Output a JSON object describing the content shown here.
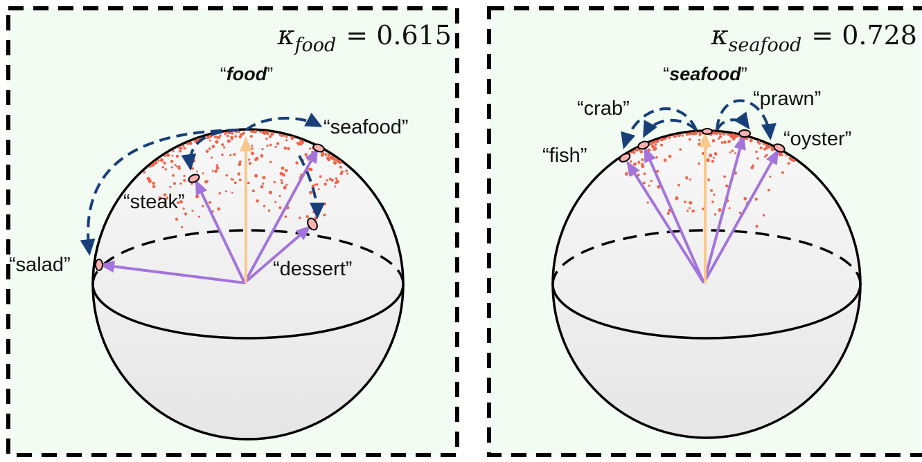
{
  "panels": [
    {
      "kappa_symbol": "κ",
      "kappa_subscript": "food",
      "kappa_value": "= 0.615",
      "title": "food",
      "words": [
        "seafood",
        "steak",
        "salad",
        "dessert"
      ]
    },
    {
      "kappa_symbol": "κ",
      "kappa_subscript": "seafood",
      "kappa_value": "= 0.728",
      "title": "seafood",
      "words": [
        "crab",
        "prawn",
        "fish",
        "oyster"
      ]
    }
  ],
  "colors": {
    "background": "#f2fcf2",
    "sphere_fill": "#ececec",
    "sphere_stroke": "#000000",
    "word_arrow": "#a374dc",
    "mean_arrow": "#f9c98c",
    "curved_arrow": "#183f7a",
    "points": "#f0654a"
  }
}
